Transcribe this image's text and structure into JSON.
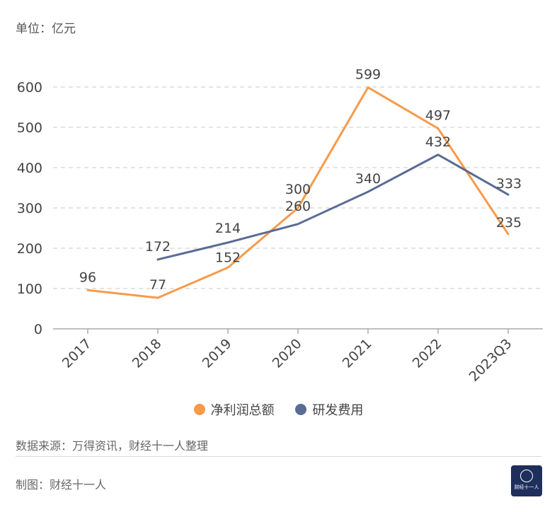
{
  "unit_label": "单位：亿元",
  "source_label": "数据来源：万得资讯，财经十一人整理",
  "maker_label": "制图：财经十一人",
  "logo_text": "财经十一人",
  "chart_data": {
    "type": "line",
    "categories": [
      "2017",
      "2018",
      "2019",
      "2020",
      "2021",
      "2022",
      "2023Q3"
    ],
    "ylim": [
      0,
      600
    ],
    "yticks": [
      "0",
      "100",
      "200",
      "300",
      "400",
      "500",
      "600"
    ],
    "grid": true,
    "legend_position": "bottom",
    "series": [
      {
        "name": "净利润总额",
        "color": "#f79a4b",
        "values": [
          96,
          77,
          152,
          300,
          599,
          497,
          235
        ],
        "labels": [
          "96",
          "77",
          "152",
          "300",
          "599",
          "497",
          "235"
        ]
      },
      {
        "name": "研发费用",
        "color": "#5a6b94",
        "values": [
          null,
          172,
          214,
          260,
          340,
          432,
          333
        ],
        "labels": [
          "",
          "172",
          "214",
          "260",
          "340",
          "432",
          "333"
        ]
      }
    ]
  }
}
